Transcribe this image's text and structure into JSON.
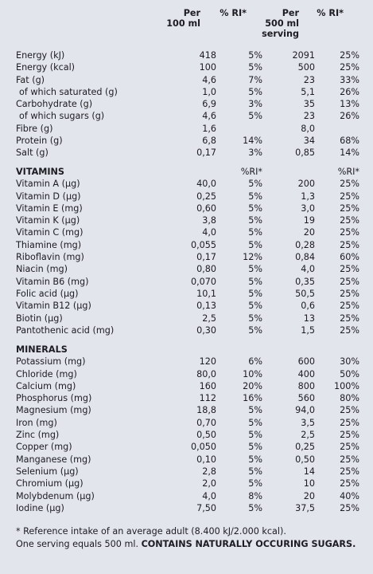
{
  "headers": {
    "per100_l1": "Per",
    "per100_l2": "100 ml",
    "ri100": "% RI*",
    "perServing_l1": "Per",
    "perServing_l2": "500 ml",
    "perServing_l3": "serving",
    "riServing": "% RI*"
  },
  "energy": [
    {
      "label": "Energy (kJ)",
      "v1": "418",
      "v2": "5%",
      "v3": "2091",
      "v4": "25%"
    },
    {
      "label": "Energy (kcal)",
      "v1": "100",
      "v2": "5%",
      "v3": "500",
      "v4": "25%"
    },
    {
      "label": "Fat (g)",
      "v1": "4,6",
      "v2": "7%",
      "v3": "23",
      "v4": "33%"
    },
    {
      "label": "of which saturated (g)",
      "v1": "1,0",
      "v2": "5%",
      "v3": "5,1",
      "v4": "26%",
      "indent": true
    },
    {
      "label": "Carbohydrate  (g)",
      "v1": "6,9",
      "v2": "3%",
      "v3": "35",
      "v4": "13%"
    },
    {
      "label": "of which sugars (g)",
      "v1": "4,6",
      "v2": "5%",
      "v3": "23",
      "v4": "26%",
      "indent": true
    },
    {
      "label": "Fibre (g)",
      "v1": "1,6",
      "v2": "",
      "v3": "8,0",
      "v4": ""
    },
    {
      "label": "Protein (g)",
      "v1": "6,8",
      "v2": "14%",
      "v3": "34",
      "v4": "68%"
    },
    {
      "label": "Salt (g)",
      "v1": "0,17",
      "v2": "3%",
      "v3": "0,85",
      "v4": "14%"
    }
  ],
  "vitamins": {
    "title": "VITAMINS",
    "ri1": "%RI*",
    "ri2": "%RI*",
    "rows": [
      {
        "label": "Vitamin A (µg)",
        "v1": "40,0",
        "v2": "5%",
        "v3": "200",
        "v4": "25%"
      },
      {
        "label": "Vitamin D (µg)",
        "v1": "0,25",
        "v2": "5%",
        "v3": "1,3",
        "v4": "25%"
      },
      {
        "label": "Vitamin E (mg)",
        "v1": "0,60",
        "v2": "5%",
        "v3": "3,0",
        "v4": "25%"
      },
      {
        "label": "Vitamin K (µg)",
        "v1": "3,8",
        "v2": "5%",
        "v3": "19",
        "v4": "25%"
      },
      {
        "label": "Vitamin C (mg)",
        "v1": "4,0",
        "v2": "5%",
        "v3": "20",
        "v4": "25%"
      },
      {
        "label": "Thiamine (mg)",
        "v1": "0,055",
        "v2": "5%",
        "v3": "0,28",
        "v4": "25%"
      },
      {
        "label": "Riboflavin (mg)",
        "v1": "0,17",
        "v2": "12%",
        "v3": "0,84",
        "v4": "60%"
      },
      {
        "label": "Niacin (mg)",
        "v1": "0,80",
        "v2": "5%",
        "v3": "4,0",
        "v4": "25%"
      },
      {
        "label": "Vitamin B6 (mg)",
        "v1": "0,070",
        "v2": "5%",
        "v3": "0,35",
        "v4": "25%"
      },
      {
        "label": "Folic acid (µg)",
        "v1": "10,1",
        "v2": "5%",
        "v3": "50,5",
        "v4": "25%"
      },
      {
        "label": "Vitamin B12 (µg)",
        "v1": "0,13",
        "v2": "5%",
        "v3": "0,6",
        "v4": "25%"
      },
      {
        "label": "Biotin (µg)",
        "v1": "2,5",
        "v2": "5%",
        "v3": "13",
        "v4": "25%"
      },
      {
        "label": "Pantothenic acid (mg)",
        "v1": "0,30",
        "v2": "5%",
        "v3": "1,5",
        "v4": "25%"
      }
    ]
  },
  "minerals": {
    "title": "MINERALS",
    "rows": [
      {
        "label": "Potassium (mg)",
        "v1": "120",
        "v2": "6%",
        "v3": "600",
        "v4": "30%"
      },
      {
        "label": "Chloride (mg)",
        "v1": "80,0",
        "v2": "10%",
        "v3": "400",
        "v4": "50%"
      },
      {
        "label": "Calcium (mg)",
        "v1": "160",
        "v2": "20%",
        "v3": "800",
        "v4": "100%"
      },
      {
        "label": "Phosphorus (mg)",
        "v1": "112",
        "v2": "16%",
        "v3": "560",
        "v4": "80%"
      },
      {
        "label": "Magnesium (mg)",
        "v1": "18,8",
        "v2": "5%",
        "v3": "94,0",
        "v4": "25%"
      },
      {
        "label": "Iron (mg)",
        "v1": "0,70",
        "v2": "5%",
        "v3": "3,5",
        "v4": "25%"
      },
      {
        "label": "Zinc (mg)",
        "v1": "0,50",
        "v2": "5%",
        "v3": "2,5",
        "v4": "25%"
      },
      {
        "label": "Copper (mg)",
        "v1": "0,050",
        "v2": "5%",
        "v3": "0,25",
        "v4": "25%"
      },
      {
        "label": "Manganese (mg)",
        "v1": "0,10",
        "v2": "5%",
        "v3": "0,50",
        "v4": "25%"
      },
      {
        "label": "Selenium (µg)",
        "v1": "2,8",
        "v2": "5%",
        "v3": "14",
        "v4": "25%"
      },
      {
        "label": "Chromium (µg)",
        "v1": "2,0",
        "v2": "5%",
        "v3": "10",
        "v4": "25%"
      },
      {
        "label": "Molybdenum (µg)",
        "v1": "4,0",
        "v2": "8%",
        "v3": "20",
        "v4": "40%"
      },
      {
        "label": "Iodine (µg)",
        "v1": "7,50",
        "v2": "5%",
        "v3": "37,5",
        "v4": "25%"
      }
    ]
  },
  "footnote": {
    "line1": "* Reference intake of an average adult (8.400 kJ/2.000 kcal).",
    "line2_normal": "One serving equals 500 ml. ",
    "line2_bold": "CONTAINS NATURALLY OCCURING SUGARS."
  }
}
